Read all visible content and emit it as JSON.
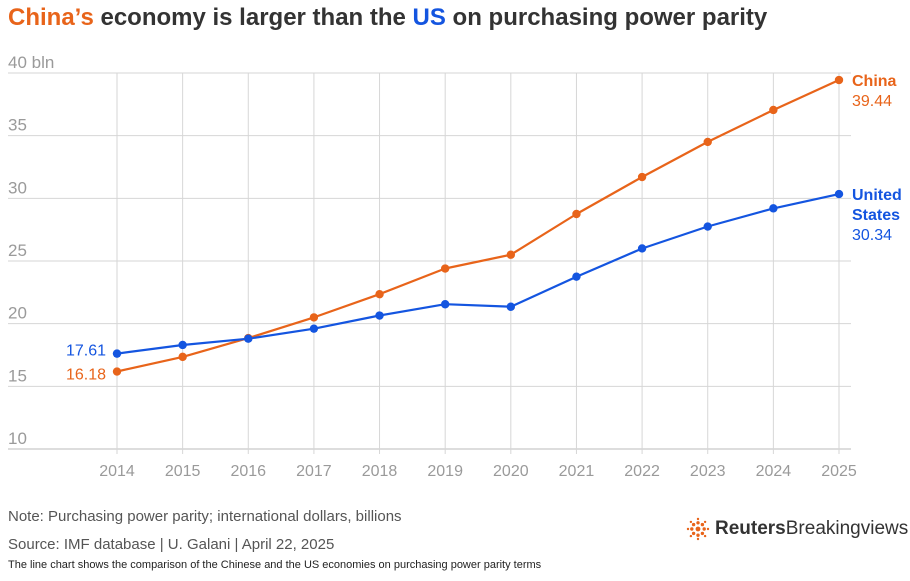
{
  "title": {
    "part1": "China’s",
    "part2": " economy is larger than the ",
    "part3": "US",
    "part4": " on purchasing power parity"
  },
  "colors": {
    "china": "#e8641a",
    "us": "#1455e0",
    "grid": "#d6d6d6",
    "tick_text": "#9a9a9a"
  },
  "chart_data": {
    "type": "line",
    "x": [
      2014,
      2015,
      2016,
      2017,
      2018,
      2019,
      2020,
      2021,
      2022,
      2023,
      2024,
      2025
    ],
    "xlim": [
      2014,
      2025
    ],
    "ylim": [
      10,
      40
    ],
    "yticks": [
      10,
      15,
      20,
      25,
      30,
      35,
      40
    ],
    "ytick_labels": [
      "10",
      "15",
      "20",
      "25",
      "30",
      "35",
      "40 bln"
    ],
    "grid": true,
    "series": [
      {
        "name": "China",
        "color": "#e8641a",
        "values": [
          16.18,
          17.35,
          18.85,
          20.5,
          22.35,
          24.4,
          25.5,
          28.75,
          31.7,
          34.5,
          37.05,
          39.44
        ],
        "start_label": "16.18",
        "end_label_lines": [
          "China"
        ],
        "end_value_label": "39.44"
      },
      {
        "name": "United States",
        "color": "#1455e0",
        "values": [
          17.61,
          18.3,
          18.8,
          19.6,
          20.65,
          21.55,
          21.35,
          23.75,
          26.0,
          27.75,
          29.2,
          30.34
        ],
        "start_label": "17.61",
        "end_label_lines": [
          "United",
          "States"
        ],
        "end_value_label": "30.34"
      }
    ]
  },
  "footer": {
    "note": "Note: Purchasing power parity; international dollars, billions",
    "source": "Source: IMF database | U. Galani | April 22, 2025",
    "description": "The line chart shows the comparison of the Chinese and the US economies on purchasing power parity terms",
    "logo_brand": "Reuters",
    "logo_product": "Breakingviews"
  }
}
